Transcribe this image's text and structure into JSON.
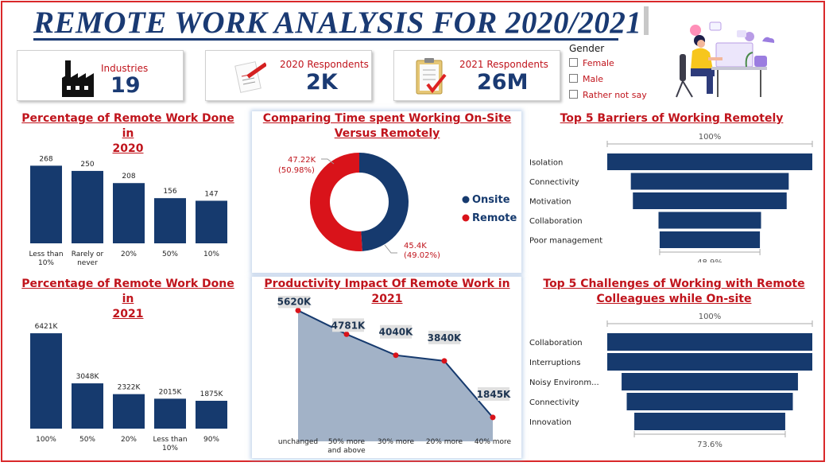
{
  "header": {
    "title": "REMOTE WORK ANALYSIS FOR 2020/2021"
  },
  "kpis": {
    "industries": {
      "label": "Industries",
      "value": "19"
    },
    "respondents_2020": {
      "label": "2020 Respondents",
      "value": "2K"
    },
    "respondents_2021": {
      "label": "2021 Respondents",
      "value": "26M"
    }
  },
  "gender_filter": {
    "title": "Gender",
    "options": [
      "Female",
      "Male",
      "Rather not say"
    ]
  },
  "panels": {
    "p2020": {
      "title_l1": "Percentage of Remote Work Done in",
      "title_l2": "2020"
    },
    "onsite": {
      "title_l1": "Comparing Time spent Working On-Site",
      "title_l2": "Versus Remotely"
    },
    "barriers": {
      "title_l1": "Top 5 Barriers of Working Remotely"
    },
    "p2021": {
      "title_l1": "Percentage of Remote Work Done in",
      "title_l2": "2021"
    },
    "productivity": {
      "title_l1": "Productivity Impact Of Remote Work in 2021"
    },
    "challenges": {
      "title_l1": "Top 5 Challenges of Working with Remote",
      "title_l2": "Colleagues while On-site"
    }
  },
  "colors": {
    "navy": "#163a6e",
    "red": "#d9131a",
    "area": "#a2b2c7",
    "title_red": "#c0141c"
  },
  "chart_data": [
    {
      "id": "remote_2020",
      "type": "bar",
      "categories": [
        "Less than 10%",
        "Rarely or never",
        "20%",
        "50%",
        "10%"
      ],
      "values": [
        268,
        250,
        208,
        156,
        147
      ],
      "labels": [
        "268",
        "250",
        "208",
        "156",
        "147"
      ],
      "ylim": [
        0,
        280
      ]
    },
    {
      "id": "onsite_vs_remote",
      "type": "pie",
      "donut": true,
      "slices": [
        {
          "name": "Onsite",
          "value": 45.4,
          "label": "45.4K",
          "pct": "(49.02%)"
        },
        {
          "name": "Remote",
          "value": 47.22,
          "label": "47.22K",
          "pct": "(50.98%)"
        }
      ],
      "legend": "right"
    },
    {
      "id": "barriers",
      "type": "bar",
      "orientation": "funnel",
      "categories": [
        "Isolation",
        "Connectivity",
        "Motivation",
        "Collaboration",
        "Poor management"
      ],
      "values": [
        100,
        77,
        75,
        50,
        48.9
      ],
      "top_label": "100%",
      "bottom_label": "48.9%"
    },
    {
      "id": "remote_2021",
      "type": "bar",
      "categories": [
        "100%",
        "50%",
        "20%",
        "Less than 10%",
        "90%"
      ],
      "values": [
        6421,
        3048,
        2322,
        2015,
        1875
      ],
      "labels": [
        "6421K",
        "3048K",
        "2322K",
        "2015K",
        "1875K"
      ],
      "ylim": [
        0,
        6800
      ]
    },
    {
      "id": "productivity_2021",
      "type": "area",
      "categories": [
        "unchanged",
        "50% more and above",
        "30% more",
        "20% more",
        "40% more"
      ],
      "values": [
        5620,
        4781,
        4040,
        3840,
        1845
      ],
      "labels": [
        "5620K",
        "4781K",
        "4040K",
        "3840K",
        "1845K"
      ],
      "ylim": [
        1000,
        5800
      ]
    },
    {
      "id": "challenges",
      "type": "bar",
      "orientation": "funnel",
      "categories": [
        "Collaboration",
        "Interruptions",
        "Noisy Environm...",
        "Connectivity",
        "Innovation"
      ],
      "values": [
        100,
        100,
        86,
        81,
        73.6
      ],
      "top_label": "100%",
      "bottom_label": "73.6%"
    }
  ]
}
